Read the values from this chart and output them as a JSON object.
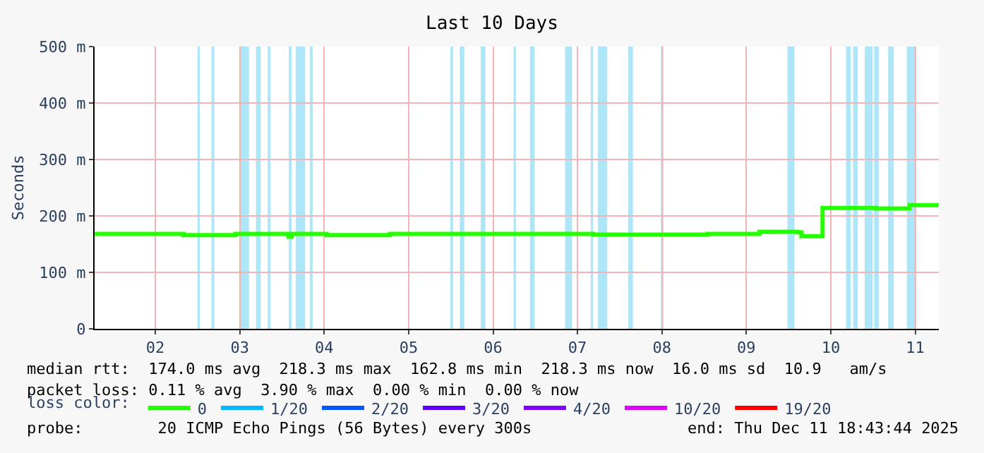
{
  "chart_data": {
    "type": "step",
    "title": "Last 10 Days",
    "ylabel": "Seconds",
    "legend_title": "loss color:",
    "x": [
      "2025-12-01T18:45",
      "2025-12-02T19:58",
      "2025-12-03T10:45",
      "2025-12-04T01:55",
      "2025-12-04T02:43",
      "2025-12-04T12:42",
      "2025-12-05T06:40",
      "2025-12-07T16:34",
      "2025-12-09T00:55",
      "2025-12-09T15:42",
      "2025-12-10T02:29",
      "2025-12-10T03:40",
      "2025-12-10T09:40",
      "2025-12-11T00:50",
      "2025-12-11T10:25",
      "2025-12-11T18:40"
    ],
    "series": [
      {
        "name": "0",
        "color": "#26ff00",
        "values": [
          168,
          166,
          168,
          163,
          168,
          166,
          168,
          167,
          168,
          172,
          171,
          164,
          214,
          213,
          219,
          219
        ]
      },
      {
        "name": "1/20",
        "color": "#00b8ff",
        "values": [
          null,
          null,
          null,
          null,
          null,
          null,
          null,
          null,
          null,
          null,
          null,
          null,
          null,
          null,
          null,
          null
        ]
      },
      {
        "name": "2/20",
        "color": "#0059ff",
        "values": [
          null,
          null,
          null,
          null,
          null,
          null,
          null,
          null,
          null,
          null,
          null,
          null,
          null,
          null,
          null,
          null
        ]
      },
      {
        "name": "3/20",
        "color": "#5e00ff",
        "values": [
          null,
          null,
          null,
          null,
          null,
          null,
          null,
          null,
          null,
          null,
          null,
          null,
          null,
          null,
          null,
          null
        ]
      },
      {
        "name": "4/20",
        "color": "#7e00ff",
        "values": [
          null,
          null,
          null,
          null,
          null,
          null,
          null,
          null,
          null,
          null,
          null,
          null,
          null,
          null,
          null,
          null
        ]
      },
      {
        "name": "10/20",
        "color": "#dd00ff",
        "values": [
          null,
          null,
          null,
          null,
          null,
          null,
          null,
          null,
          null,
          null,
          null,
          null,
          null,
          null,
          null,
          null
        ]
      },
      {
        "name": "19/20",
        "color": "#ff0000",
        "values": [
          null,
          null,
          null,
          null,
          null,
          null,
          null,
          null,
          null,
          null,
          null,
          null,
          null,
          null,
          null,
          null
        ]
      }
    ],
    "xlim": [
      "2025-12-01T18:43",
      "2025-12-11T18:43"
    ],
    "xticks": [
      {
        "value": "2025-12-02T12:00",
        "label": "02"
      },
      {
        "value": "2025-12-03T12:00",
        "label": "03"
      },
      {
        "value": "2025-12-04T12:00",
        "label": "04"
      },
      {
        "value": "2025-12-05T12:00",
        "label": "05"
      },
      {
        "value": "2025-12-06T12:00",
        "label": "06"
      },
      {
        "value": "2025-12-07T12:00",
        "label": "07"
      },
      {
        "value": "2025-12-08T12:00",
        "label": "08"
      },
      {
        "value": "2025-12-09T12:00",
        "label": "09"
      },
      {
        "value": "2025-12-10T12:00",
        "label": "10"
      },
      {
        "value": "2025-12-11T12:00",
        "label": "11"
      }
    ],
    "ylim": [
      0,
      500
    ],
    "yticks": [
      {
        "value": 0,
        "label": "0"
      },
      {
        "value": 100,
        "label": "100 m"
      },
      {
        "value": 200,
        "label": "200 m"
      },
      {
        "value": 300,
        "label": "300 m"
      },
      {
        "value": 400,
        "label": "400 m"
      },
      {
        "value": 500,
        "label": "500 m"
      }
    ],
    "grid": true,
    "legend": "bottom",
    "line_style": "solid",
    "bands": [
      {
        "axis": "x",
        "from": "2025-12-02T23:58",
        "to": "2025-12-03T00:38",
        "color": "#aee6f9"
      },
      {
        "axis": "x",
        "from": "2025-12-03T03:57",
        "to": "2025-12-03T04:45",
        "color": "#aee6f9"
      },
      {
        "axis": "x",
        "from": "2025-12-03T11:56",
        "to": "2025-12-03T14:37",
        "color": "#aee6f9"
      },
      {
        "axis": "x",
        "from": "2025-12-03T16:37",
        "to": "2025-12-03T17:56",
        "color": "#aee6f9"
      },
      {
        "axis": "x",
        "from": "2025-12-03T19:56",
        "to": "2025-12-03T20:44",
        "color": "#aee6f9"
      },
      {
        "axis": "x",
        "from": "2025-12-04T01:55",
        "to": "2025-12-04T02:43",
        "color": "#aee6f9"
      },
      {
        "axis": "x",
        "from": "2025-12-04T03:55",
        "to": "2025-12-04T06:35",
        "color": "#aee6f9"
      },
      {
        "axis": "x",
        "from": "2025-12-04T07:54",
        "to": "2025-12-04T08:42",
        "color": "#aee6f9"
      },
      {
        "axis": "x",
        "from": "2025-12-05T23:50",
        "to": "2025-12-06T00:38",
        "color": "#aee6f9"
      },
      {
        "axis": "x",
        "from": "2025-12-06T02:31",
        "to": "2025-12-06T03:50",
        "color": "#aee6f9"
      },
      {
        "axis": "x",
        "from": "2025-12-06T08:30",
        "to": "2025-12-06T09:49",
        "color": "#aee6f9"
      },
      {
        "axis": "x",
        "from": "2025-12-06T17:49",
        "to": "2025-12-06T18:29",
        "color": "#aee6f9"
      },
      {
        "axis": "x",
        "from": "2025-12-06T22:29",
        "to": "2025-12-06T23:48",
        "color": "#aee6f9"
      },
      {
        "axis": "x",
        "from": "2025-12-07T08:28",
        "to": "2025-12-07T10:28",
        "color": "#aee6f9"
      },
      {
        "axis": "x",
        "from": "2025-12-07T15:46",
        "to": "2025-12-07T16:27",
        "color": "#aee6f9"
      },
      {
        "axis": "x",
        "from": "2025-12-07T17:46",
        "to": "2025-12-07T20:27",
        "color": "#aee6f9"
      },
      {
        "axis": "x",
        "from": "2025-12-08T02:26",
        "to": "2025-12-08T03:45",
        "color": "#aee6f9"
      },
      {
        "axis": "x",
        "from": "2025-12-08T11:44",
        "to": "2025-12-08T12:25",
        "color": "#aee6f9"
      },
      {
        "axis": "x",
        "from": "2025-12-09T23:41",
        "to": "2025-12-10T01:41",
        "color": "#aee6f9"
      },
      {
        "axis": "x",
        "from": "2025-12-10T16:20",
        "to": "2025-12-10T17:39",
        "color": "#aee6f9"
      },
      {
        "axis": "x",
        "from": "2025-12-10T18:20",
        "to": "2025-12-10T19:39",
        "color": "#aee6f9"
      },
      {
        "axis": "x",
        "from": "2025-12-10T21:39",
        "to": "2025-12-10T23:55",
        "color": "#aee6f9"
      },
      {
        "axis": "x",
        "from": "2025-12-11T00:19",
        "to": "2025-12-11T01:38",
        "color": "#aee6f9"
      },
      {
        "axis": "x",
        "from": "2025-12-11T04:18",
        "to": "2025-12-11T05:54",
        "color": "#aee6f9"
      },
      {
        "axis": "x",
        "from": "2025-12-11T09:37",
        "to": "2025-12-11T11:54",
        "color": "#aee6f9"
      }
    ],
    "annotations": [
      "median rtt:  174.0 ms avg  218.3 ms max  162.8 ms min  218.3 ms now  16.0 ms sd  10.9   am/s",
      "packet loss: 0.11 % avg  3.90 % max  0.00 % min  0.00 % now",
      "probe:        20 ICMP Echo Pings (56 Bytes) every 300s",
      "end: Thu Dec 11 18:43:44 2025"
    ]
  }
}
